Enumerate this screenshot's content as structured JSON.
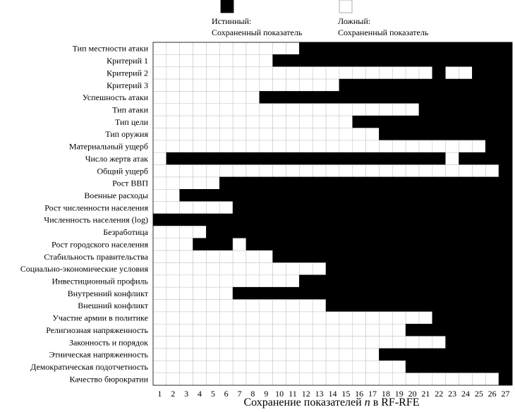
{
  "chart_data": {
    "type": "heatmap",
    "legend": {
      "true_label_line1": "Истинный:",
      "true_label_line2": "Сохраненный показатель",
      "false_label_line1": "Ложный:",
      "false_label_line2": "Сохраненный показатель",
      "true_color": "#000000",
      "false_color": "#ffffff"
    },
    "xlabel_prefix": "Сохранение показателей ",
    "xlabel_var": "n",
    "xlabel_suffix": " в RF-RFE",
    "x": [
      1,
      2,
      3,
      4,
      5,
      6,
      7,
      8,
      9,
      10,
      11,
      12,
      13,
      14,
      15,
      16,
      17,
      18,
      19,
      20,
      21,
      22,
      23,
      24,
      25,
      26,
      27
    ],
    "rows": [
      {
        "label": "Тип местности атаки",
        "retained": [
          12,
          13,
          14,
          15,
          16,
          17,
          18,
          19,
          20,
          21,
          22,
          23,
          24,
          25,
          26,
          27
        ]
      },
      {
        "label": "Критерий 1",
        "retained": [
          10,
          11,
          12,
          13,
          14,
          15,
          16,
          17,
          18,
          19,
          20,
          21,
          22,
          23,
          24,
          25,
          26,
          27
        ]
      },
      {
        "label": "Критерий 2",
        "retained": [
          22,
          25,
          26,
          27
        ]
      },
      {
        "label": "Критерий 3",
        "retained": [
          15,
          16,
          17,
          18,
          19,
          20,
          21,
          22,
          23,
          24,
          25,
          26,
          27
        ]
      },
      {
        "label": "Успешность атаки",
        "retained": [
          9,
          10,
          11,
          12,
          13,
          14,
          15,
          16,
          17,
          18,
          19,
          20,
          21,
          22,
          23,
          24,
          25,
          26,
          27
        ]
      },
      {
        "label": "Тип атаки",
        "retained": [
          21,
          22,
          23,
          24,
          25,
          26,
          27
        ]
      },
      {
        "label": "Тип цели",
        "retained": [
          16,
          17,
          18,
          19,
          20,
          21,
          22,
          23,
          24,
          25,
          26,
          27
        ]
      },
      {
        "label": "Тип оружия",
        "retained": [
          18,
          19,
          20,
          21,
          22,
          23,
          24,
          25,
          26,
          27
        ]
      },
      {
        "label": "Материальный ущерб",
        "retained": [
          26,
          27
        ]
      },
      {
        "label": "Число жертв атак",
        "retained": [
          2,
          3,
          4,
          5,
          6,
          7,
          8,
          9,
          10,
          11,
          12,
          13,
          14,
          15,
          16,
          17,
          18,
          19,
          20,
          21,
          22,
          24,
          25,
          26,
          27
        ]
      },
      {
        "label": "Общий ущерб",
        "retained": [
          27
        ]
      },
      {
        "label": "Рост ВВП",
        "retained": [
          6,
          7,
          8,
          9,
          10,
          11,
          12,
          13,
          14,
          15,
          16,
          17,
          18,
          19,
          20,
          21,
          22,
          23,
          24,
          25,
          26,
          27
        ]
      },
      {
        "label": "Военные расходы",
        "retained": [
          3,
          4,
          5,
          6,
          7,
          8,
          9,
          10,
          11,
          12,
          13,
          14,
          15,
          16,
          17,
          18,
          19,
          20,
          21,
          22,
          23,
          24,
          25,
          26,
          27
        ]
      },
      {
        "label": "Рост численности населения",
        "retained": [
          7,
          8,
          9,
          10,
          11,
          12,
          13,
          14,
          15,
          16,
          17,
          18,
          19,
          20,
          21,
          22,
          23,
          24,
          25,
          26,
          27
        ]
      },
      {
        "label": "Численность населения (log)",
        "retained": [
          1,
          2,
          3,
          4,
          5,
          6,
          7,
          8,
          9,
          10,
          11,
          12,
          13,
          14,
          15,
          16,
          17,
          18,
          19,
          20,
          21,
          22,
          23,
          24,
          25,
          26,
          27
        ]
      },
      {
        "label": "Безработица",
        "retained": [
          5,
          6,
          7,
          8,
          9,
          10,
          11,
          12,
          13,
          14,
          15,
          16,
          17,
          18,
          19,
          20,
          21,
          22,
          23,
          24,
          25,
          26,
          27
        ]
      },
      {
        "label": "Рост городского населения",
        "retained": [
          4,
          5,
          6,
          8,
          9,
          10,
          11,
          12,
          13,
          14,
          15,
          16,
          17,
          18,
          19,
          20,
          21,
          22,
          23,
          24,
          25,
          26,
          27
        ]
      },
      {
        "label": "Стабильность правительства",
        "retained": [
          10,
          11,
          12,
          13,
          14,
          15,
          16,
          17,
          18,
          19,
          20,
          21,
          22,
          23,
          24,
          25,
          26,
          27
        ]
      },
      {
        "label": "Социально-экономические условия",
        "retained": [
          14,
          15,
          16,
          17,
          18,
          19,
          20,
          21,
          22,
          23,
          24,
          25,
          26,
          27
        ]
      },
      {
        "label": "Инвестиционный профиль",
        "retained": [
          12,
          13,
          14,
          15,
          16,
          17,
          18,
          19,
          20,
          21,
          22,
          23,
          24,
          25,
          26,
          27
        ]
      },
      {
        "label": "Внутренний конфликт",
        "retained": [
          7,
          8,
          9,
          10,
          11,
          12,
          13,
          14,
          15,
          16,
          17,
          18,
          19,
          20,
          21,
          22,
          23,
          24,
          25,
          26,
          27
        ]
      },
      {
        "label": "Внешний конфликт",
        "retained": [
          14,
          15,
          16,
          17,
          18,
          19,
          20,
          21,
          22,
          23,
          24,
          25,
          26,
          27
        ]
      },
      {
        "label": "Участие армии в политике",
        "retained": [
          22,
          23,
          24,
          25,
          26,
          27
        ]
      },
      {
        "label": "Религиозная напряженность",
        "retained": [
          20,
          21,
          22,
          23,
          24,
          25,
          26,
          27
        ]
      },
      {
        "label": "Законность и порядок",
        "retained": [
          23,
          24,
          25,
          26,
          27
        ]
      },
      {
        "label": "Этническая напряженность",
        "retained": [
          18,
          19,
          20,
          21,
          22,
          23,
          24,
          25,
          26,
          27
        ]
      },
      {
        "label": "Демократическая подотчетность",
        "retained": [
          20,
          21,
          22,
          23,
          24,
          25,
          26,
          27
        ]
      },
      {
        "label": "Качество бюрократии",
        "retained": [
          27
        ]
      }
    ]
  }
}
